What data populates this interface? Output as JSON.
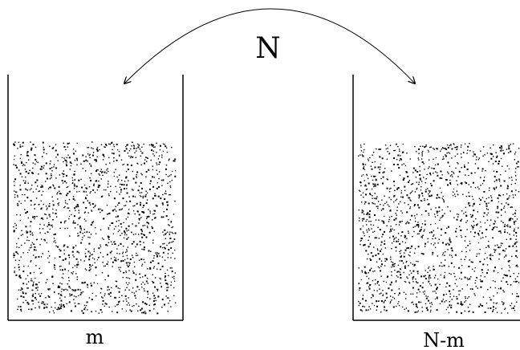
{
  "diagram": {
    "top_label": "N",
    "left_label": "m",
    "right_label": "N-m"
  },
  "colors": {
    "ink": "#000000",
    "background": "#ffffff"
  }
}
